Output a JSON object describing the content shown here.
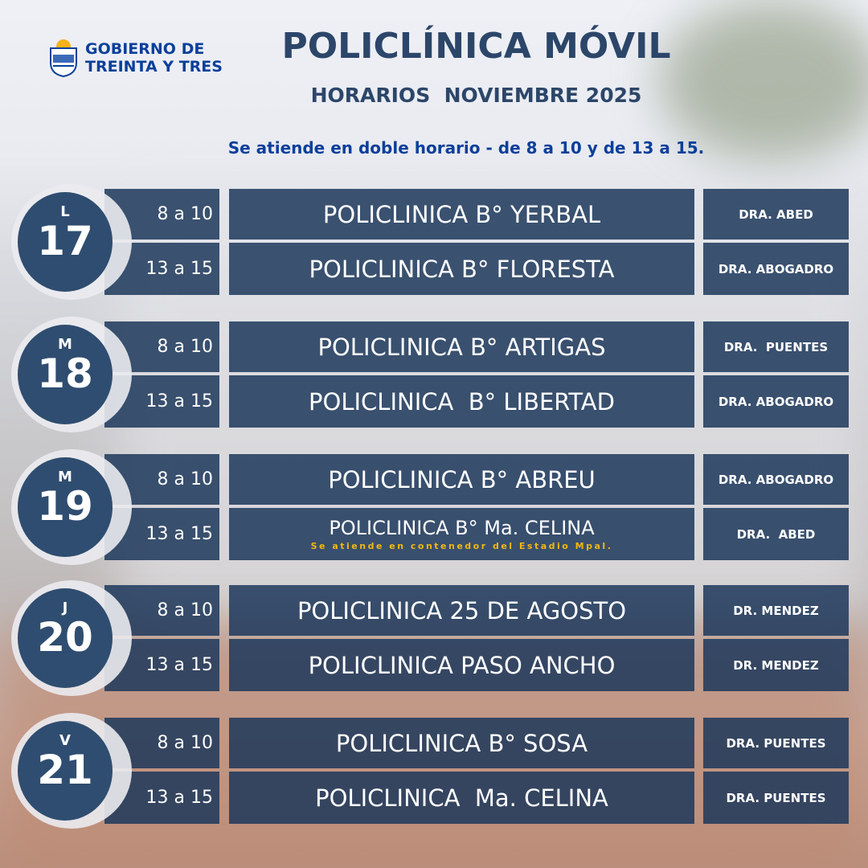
{
  "header": {
    "logo_line1": "GOBIERNO DE",
    "logo_line2": "TREINTA Y TRES",
    "title": "POLICLÍNICA MÓVIL",
    "subtitle": "HORARIOS  NOVIEMBRE 2025",
    "note": "Se atiende en doble horario - de 8 a 10 y de 13 a 15."
  },
  "colors": {
    "box": "#1c375a",
    "circle": "#2f4d70",
    "title": "#2c4669",
    "logo": "#0b3f9a",
    "highlight": "#f1b812"
  },
  "days": [
    {
      "letter": "L",
      "number": "17",
      "rows": [
        {
          "time": "8 a 10",
          "place": "POLICLINICA B° YERBAL",
          "doctor": "DRA. ABED"
        },
        {
          "time": "13 a 15",
          "place": "POLICLINICA B° FLORESTA",
          "doctor": "DRA. ABOGADRO"
        }
      ]
    },
    {
      "letter": "M",
      "number": "18",
      "rows": [
        {
          "time": "8 a 10",
          "place": "POLICLINICA B° ARTIGAS",
          "doctor": "DRA.  PUENTES"
        },
        {
          "time": "13 a 15",
          "place": "POLICLINICA  B° LIBERTAD",
          "doctor": "DRA. ABOGADRO"
        }
      ]
    },
    {
      "letter": "M",
      "number": "19",
      "rows": [
        {
          "time": "8 a 10",
          "place": "POLICLINICA B° ABREU",
          "doctor": "DRA. ABOGADRO"
        },
        {
          "time": "13 a 15",
          "place": "POLICLINICA B° Ma. CELINA",
          "sub": "Se atiende  en contenedor del Estadio Mpal.",
          "doctor": "DRA.  ABED"
        }
      ]
    },
    {
      "letter": "J",
      "number": "20",
      "rows": [
        {
          "time": "8 a 10",
          "place": "POLICLINICA 25 DE AGOSTO",
          "doctor": "DR. MENDEZ"
        },
        {
          "time": "13 a 15",
          "place": "POLICLINICA PASO ANCHO",
          "doctor": "DR. MENDEZ"
        }
      ]
    },
    {
      "letter": "V",
      "number": "21",
      "rows": [
        {
          "time": "8 a 10",
          "place": "POLICLINICA B° SOSA",
          "doctor": "DRA. PUENTES"
        },
        {
          "time": "13 a 15",
          "place": "POLICLINICA  Ma. CELINA",
          "doctor": "DRA. PUENTES"
        }
      ]
    }
  ]
}
